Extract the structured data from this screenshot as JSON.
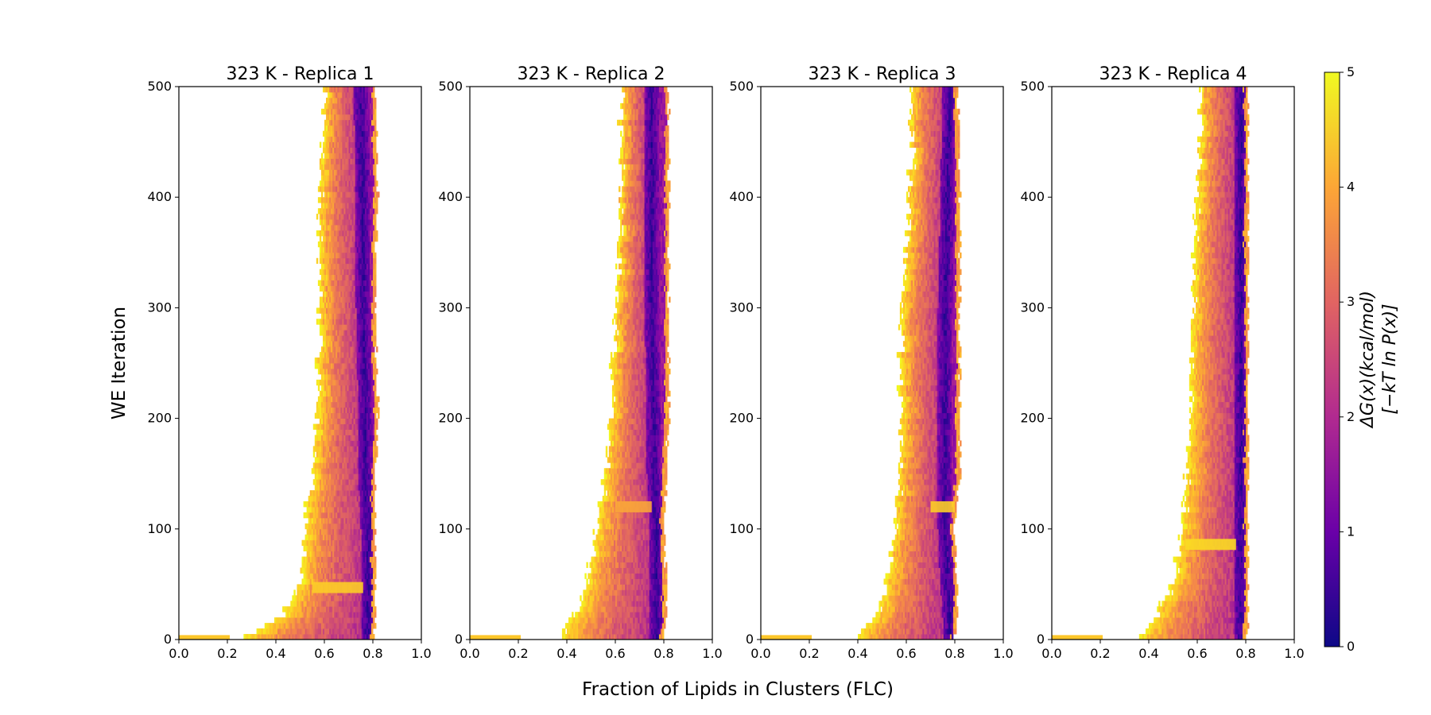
{
  "figure": {
    "xlabel": "Fraction of Lipids in Clusters (FLC)",
    "ylabel": "WE Iteration"
  },
  "colorbar": {
    "label_line1": "ΔG(x)(kcal/mol)",
    "label_line2": "[−kT ln P(x)]",
    "ticks": [
      "0",
      "1",
      "2",
      "3",
      "4",
      "5"
    ],
    "range": [
      0,
      5
    ],
    "colormap": "plasma",
    "colors": [
      "#0d0887",
      "#6a00a8",
      "#b12a90",
      "#e16462",
      "#fca636",
      "#f0f921"
    ]
  },
  "chart_data": [
    {
      "type": "heatmap",
      "title": "323 K - Replica 1",
      "xlim": [
        0,
        1
      ],
      "ylim": [
        0,
        500
      ],
      "xticks": [
        "0.0",
        "0.2",
        "0.4",
        "0.6",
        "0.8",
        "1.0"
      ],
      "yticks": [
        "0",
        "100",
        "200",
        "300",
        "400",
        "500"
      ],
      "profile": {
        "iteration": [
          0,
          20,
          50,
          100,
          150,
          200,
          300,
          400,
          500
        ],
        "left_edge_flc": [
          0.26,
          0.42,
          0.5,
          0.52,
          0.55,
          0.57,
          0.58,
          0.58,
          0.6
        ],
        "right_edge_flc": [
          0.8,
          0.81,
          0.81,
          0.81,
          0.81,
          0.82,
          0.81,
          0.82,
          0.81
        ],
        "low_energy_band_flc": [
          0.78,
          0.78,
          0.78,
          0.78,
          0.77,
          0.77,
          0.76,
          0.76,
          0.75
        ]
      },
      "horizontal_streaks": [
        {
          "iteration": 47,
          "flc_range": [
            0.55,
            0.76
          ],
          "dG": 4.0
        }
      ]
    },
    {
      "type": "heatmap",
      "title": "323 K - Replica 2",
      "xlim": [
        0,
        1
      ],
      "ylim": [
        0,
        500
      ],
      "xticks": [
        "0.0",
        "0.2",
        "0.4",
        "0.6",
        "0.8",
        "1.0"
      ],
      "yticks": [
        "0",
        "100",
        "200",
        "300",
        "400",
        "500"
      ],
      "profile": {
        "iteration": [
          0,
          20,
          50,
          100,
          150,
          200,
          300,
          400,
          500
        ],
        "left_edge_flc": [
          0.36,
          0.43,
          0.48,
          0.52,
          0.56,
          0.58,
          0.61,
          0.62,
          0.63
        ],
        "right_edge_flc": [
          0.8,
          0.81,
          0.81,
          0.8,
          0.81,
          0.82,
          0.82,
          0.82,
          0.82
        ],
        "low_energy_band_flc": [
          0.77,
          0.77,
          0.77,
          0.77,
          0.76,
          0.76,
          0.75,
          0.75,
          0.75
        ]
      },
      "horizontal_streaks": [
        {
          "iteration": 120,
          "flc_range": [
            0.6,
            0.75
          ],
          "dG": 3.5
        }
      ]
    },
    {
      "type": "heatmap",
      "title": "323 K - Replica 3",
      "xlim": [
        0,
        1
      ],
      "ylim": [
        0,
        500
      ],
      "xticks": [
        "0.0",
        "0.2",
        "0.4",
        "0.6",
        "0.8",
        "1.0"
      ],
      "yticks": [
        "0",
        "100",
        "200",
        "300",
        "400",
        "500"
      ],
      "profile": {
        "iteration": [
          0,
          20,
          50,
          100,
          150,
          200,
          300,
          400,
          500
        ],
        "left_edge_flc": [
          0.38,
          0.47,
          0.52,
          0.55,
          0.57,
          0.58,
          0.58,
          0.62,
          0.62
        ],
        "right_edge_flc": [
          0.8,
          0.81,
          0.81,
          0.8,
          0.82,
          0.82,
          0.82,
          0.82,
          0.81
        ],
        "low_energy_band_flc": [
          0.78,
          0.78,
          0.77,
          0.76,
          0.76,
          0.76,
          0.76,
          0.77,
          0.78
        ]
      },
      "horizontal_streaks": [
        {
          "iteration": 120,
          "flc_range": [
            0.7,
            0.8
          ],
          "dG": 4.0
        }
      ]
    },
    {
      "type": "heatmap",
      "title": "323 K - Replica 4",
      "xlim": [
        0,
        1
      ],
      "ylim": [
        0,
        500
      ],
      "xticks": [
        "0.0",
        "0.2",
        "0.4",
        "0.6",
        "0.8",
        "1.0"
      ],
      "yticks": [
        "0",
        "100",
        "200",
        "300",
        "400",
        "500"
      ],
      "profile": {
        "iteration": [
          0,
          20,
          50,
          100,
          150,
          200,
          300,
          400,
          500
        ],
        "left_edge_flc": [
          0.36,
          0.42,
          0.5,
          0.54,
          0.56,
          0.57,
          0.58,
          0.6,
          0.62
        ],
        "right_edge_flc": [
          0.8,
          0.81,
          0.81,
          0.81,
          0.81,
          0.81,
          0.81,
          0.81,
          0.81
        ],
        "low_energy_band_flc": [
          0.78,
          0.78,
          0.78,
          0.78,
          0.78,
          0.78,
          0.78,
          0.78,
          0.78
        ]
      },
      "horizontal_streaks": [
        {
          "iteration": 86,
          "flc_range": [
            0.55,
            0.76
          ],
          "dG": 4.2
        }
      ]
    }
  ]
}
